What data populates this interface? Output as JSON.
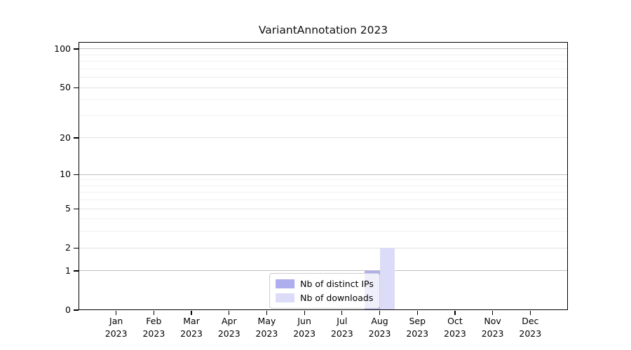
{
  "chart_data": {
    "type": "bar",
    "title": "VariantAnnotation 2023",
    "categories": [
      "Jan 2023",
      "Feb 2023",
      "Mar 2023",
      "Apr 2023",
      "May 2023",
      "Jun 2023",
      "Jul 2023",
      "Aug 2023",
      "Sep 2023",
      "Oct 2023",
      "Nov 2023",
      "Dec 2023"
    ],
    "series": [
      {
        "name": "Nb of distinct IPs",
        "color": "#aeaeee",
        "values": [
          0,
          0,
          0,
          0,
          0,
          0,
          0,
          1,
          0,
          0,
          0,
          0
        ]
      },
      {
        "name": "Nb of downloads",
        "color": "#dcdcf8",
        "values": [
          0,
          0,
          0,
          0,
          0,
          0,
          0,
          2,
          0,
          0,
          0,
          0
        ]
      }
    ],
    "yscale": "log1p",
    "yticks": [
      0,
      1,
      2,
      5,
      10,
      20,
      50,
      100
    ],
    "minor_yticks": [
      3,
      4,
      6,
      7,
      8,
      9,
      30,
      40,
      60,
      70,
      80,
      90
    ],
    "ylim": [
      0,
      113.3
    ],
    "xlabel": "",
    "ylabel": "",
    "grid": "horizontal",
    "legend_position": "lower center"
  },
  "styles": {
    "background": "#ffffff",
    "axis_color": "#000000",
    "grid_major_emphasis": "#c0c0c0",
    "grid_major": "#e2e2e2",
    "grid_minor": "#f0f0f0",
    "legend_border": "#cccccc"
  }
}
